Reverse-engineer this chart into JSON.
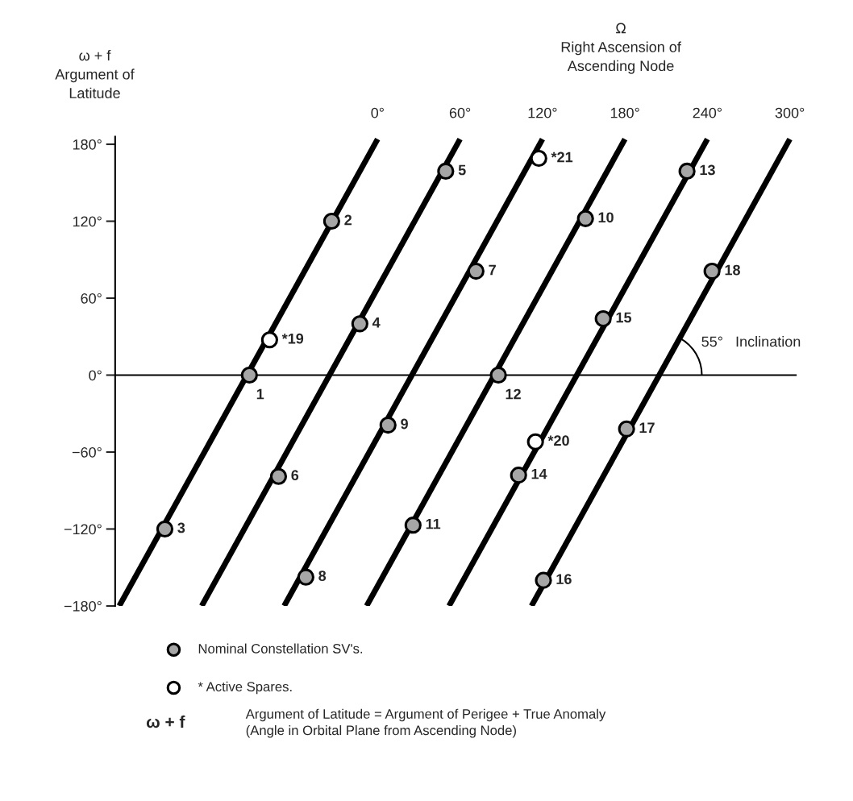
{
  "chart_data": {
    "type": "scatter",
    "xlabel": "Ω\nRight Ascension of\nAscending Node",
    "ylabel": "ω + f\nArgument of\nLatitude",
    "xlim": [
      -191,
      305
    ],
    "xticks": [
      {
        "value": 0,
        "label": "0°"
      },
      {
        "value": 60,
        "label": "60°"
      },
      {
        "value": 120,
        "label": "120°"
      },
      {
        "value": 180,
        "label": "180°"
      },
      {
        "value": 240,
        "label": "240°"
      },
      {
        "value": 300,
        "label": "300°"
      }
    ],
    "ylim": [
      -180,
      186
    ],
    "yticks": [
      {
        "value": -180,
        "label": "−180°"
      },
      {
        "value": -120,
        "label": "−120°"
      },
      {
        "value": -60,
        "label": "−60°"
      },
      {
        "value": 0,
        "label": "0°"
      },
      {
        "value": 60,
        "label": "60°"
      },
      {
        "value": 120,
        "label": "120°"
      },
      {
        "value": 180,
        "label": "180°"
      }
    ],
    "grid": false,
    "marker": "circle",
    "legend": "bottom",
    "ref_lines": [
      {
        "axis": "y",
        "value": 0,
        "label": null,
        "color": "#000000"
      }
    ],
    "annotations": [
      "55°   Inclination",
      "ω + f",
      "Argument of Latitude = Argument of Perigee + True Anomaly\n(Angle in Orbital Plane from Ascending Node)",
      {
        "text": "1",
        "x": -93.3,
        "y": 0
      },
      {
        "text": "2",
        "x": -33.4,
        "y": 120
      },
      {
        "text": "3",
        "x": -154.8,
        "y": -120
      },
      {
        "text": "4",
        "x": -12.9,
        "y": 40
      },
      {
        "text": "5",
        "x": 49.6,
        "y": 159
      },
      {
        "text": "6",
        "x": -72.1,
        "y": -79
      },
      {
        "text": "7",
        "x": 71.6,
        "y": 81
      },
      {
        "text": "8",
        "x": -52.2,
        "y": -157.5
      },
      {
        "text": "9",
        "x": 7.6,
        "y": -39
      },
      {
        "text": "10",
        "x": 151.3,
        "y": 122
      },
      {
        "text": "11",
        "x": 25.8,
        "y": -117
      },
      {
        "text": "12",
        "x": 87.9,
        "y": 0
      },
      {
        "text": "13",
        "x": 225.2,
        "y": 159
      },
      {
        "text": "14",
        "x": 102.6,
        "y": -78
      },
      {
        "text": "15",
        "x": 164.2,
        "y": 44
      },
      {
        "text": "16",
        "x": 120.7,
        "y": -160
      },
      {
        "text": "17",
        "x": 181.2,
        "y": -42
      },
      {
        "text": "18",
        "x": 243.4,
        "y": 81
      },
      {
        "text": "*19",
        "x": -78.6,
        "y": 27.5
      },
      {
        "text": "*20",
        "x": 114.9,
        "y": -52
      },
      {
        "text": "*21",
        "x": 117.3,
        "y": 169
      }
    ],
    "series": [
      {
        "type": "line",
        "marker": "none",
        "color": "#000000",
        "x": [
          0,
          -188
        ],
        "values": [
          184,
          -180
        ]
      },
      {
        "type": "line",
        "marker": "none",
        "color": "#000000",
        "x": [
          60,
          -128
        ],
        "values": [
          184,
          -180
        ]
      },
      {
        "type": "line",
        "marker": "none",
        "color": "#000000",
        "x": [
          120,
          -68
        ],
        "values": [
          184,
          -180
        ]
      },
      {
        "type": "line",
        "marker": "none",
        "color": "#000000",
        "x": [
          180,
          -8
        ],
        "values": [
          184,
          -180
        ]
      },
      {
        "type": "line",
        "marker": "none",
        "color": "#000000",
        "x": [
          240,
          52
        ],
        "values": [
          184,
          -180
        ]
      },
      {
        "type": "line",
        "marker": "none",
        "color": "#000000",
        "x": [
          300,
          112
        ],
        "values": [
          184,
          -180
        ]
      },
      {
        "name": "Nominal Constellation SV's.",
        "color": "#a6a6a6",
        "x": [
          -93.3,
          -33.4,
          -154.8,
          -12.9,
          49.6,
          -72.1,
          71.6,
          -52.2,
          7.6,
          151.3,
          25.8,
          87.9,
          225.2,
          102.6,
          164.2,
          120.7,
          181.2,
          243.4
        ],
        "values": [
          0,
          120,
          -120,
          40,
          159,
          -79,
          81,
          -157.5,
          -39,
          122,
          -117,
          0,
          159,
          -78,
          44,
          -160,
          -42,
          81
        ]
      },
      {
        "name": "* Active Spares.",
        "color": "#ffffff",
        "x": [
          -78.6,
          114.9,
          117.3
        ],
        "values": [
          27.5,
          -52,
          169
        ]
      }
    ]
  }
}
